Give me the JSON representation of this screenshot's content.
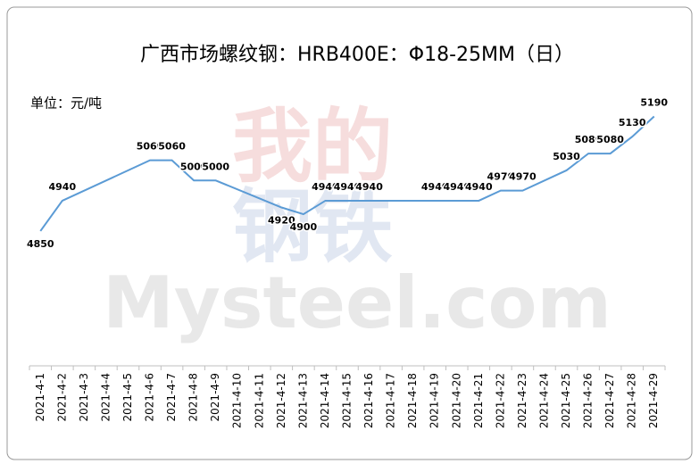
{
  "chart_data": {
    "type": "line",
    "title": "广西市场螺纹钢：HRB400E：Φ18-25MM（日）",
    "unit_label": "单位：元/吨",
    "watermark": [
      "我的",
      "钢铁",
      "Mysteel.com"
    ],
    "categories": [
      "2021-4-1",
      "2021-4-2",
      "2021-4-3",
      "2021-4-4",
      "2021-4-5",
      "2021-4-6",
      "2021-4-7",
      "2021-4-8",
      "2021-4-9",
      "2021-4-10",
      "2021-4-11",
      "2021-4-12",
      "2021-4-13",
      "2021-4-14",
      "2021-4-15",
      "2021-4-16",
      "2021-4-17",
      "2021-4-18",
      "2021-4-19",
      "2021-4-20",
      "2021-4-21",
      "2021-4-22",
      "2021-4-23",
      "2021-4-24",
      "2021-4-25",
      "2021-4-26",
      "2021-4-27",
      "2021-4-28",
      "2021-4-29"
    ],
    "values": [
      4850,
      4940,
      null,
      null,
      null,
      5060,
      5060,
      5000,
      5000,
      null,
      null,
      4920,
      4900,
      4940,
      4940,
      4940,
      null,
      null,
      4940,
      4940,
      4940,
      4970,
      4970,
      null,
      5030,
      5080,
      5080,
      5130,
      5190
    ],
    "color": "#5b9bd5",
    "ylim": [
      4450,
      5300
    ]
  }
}
